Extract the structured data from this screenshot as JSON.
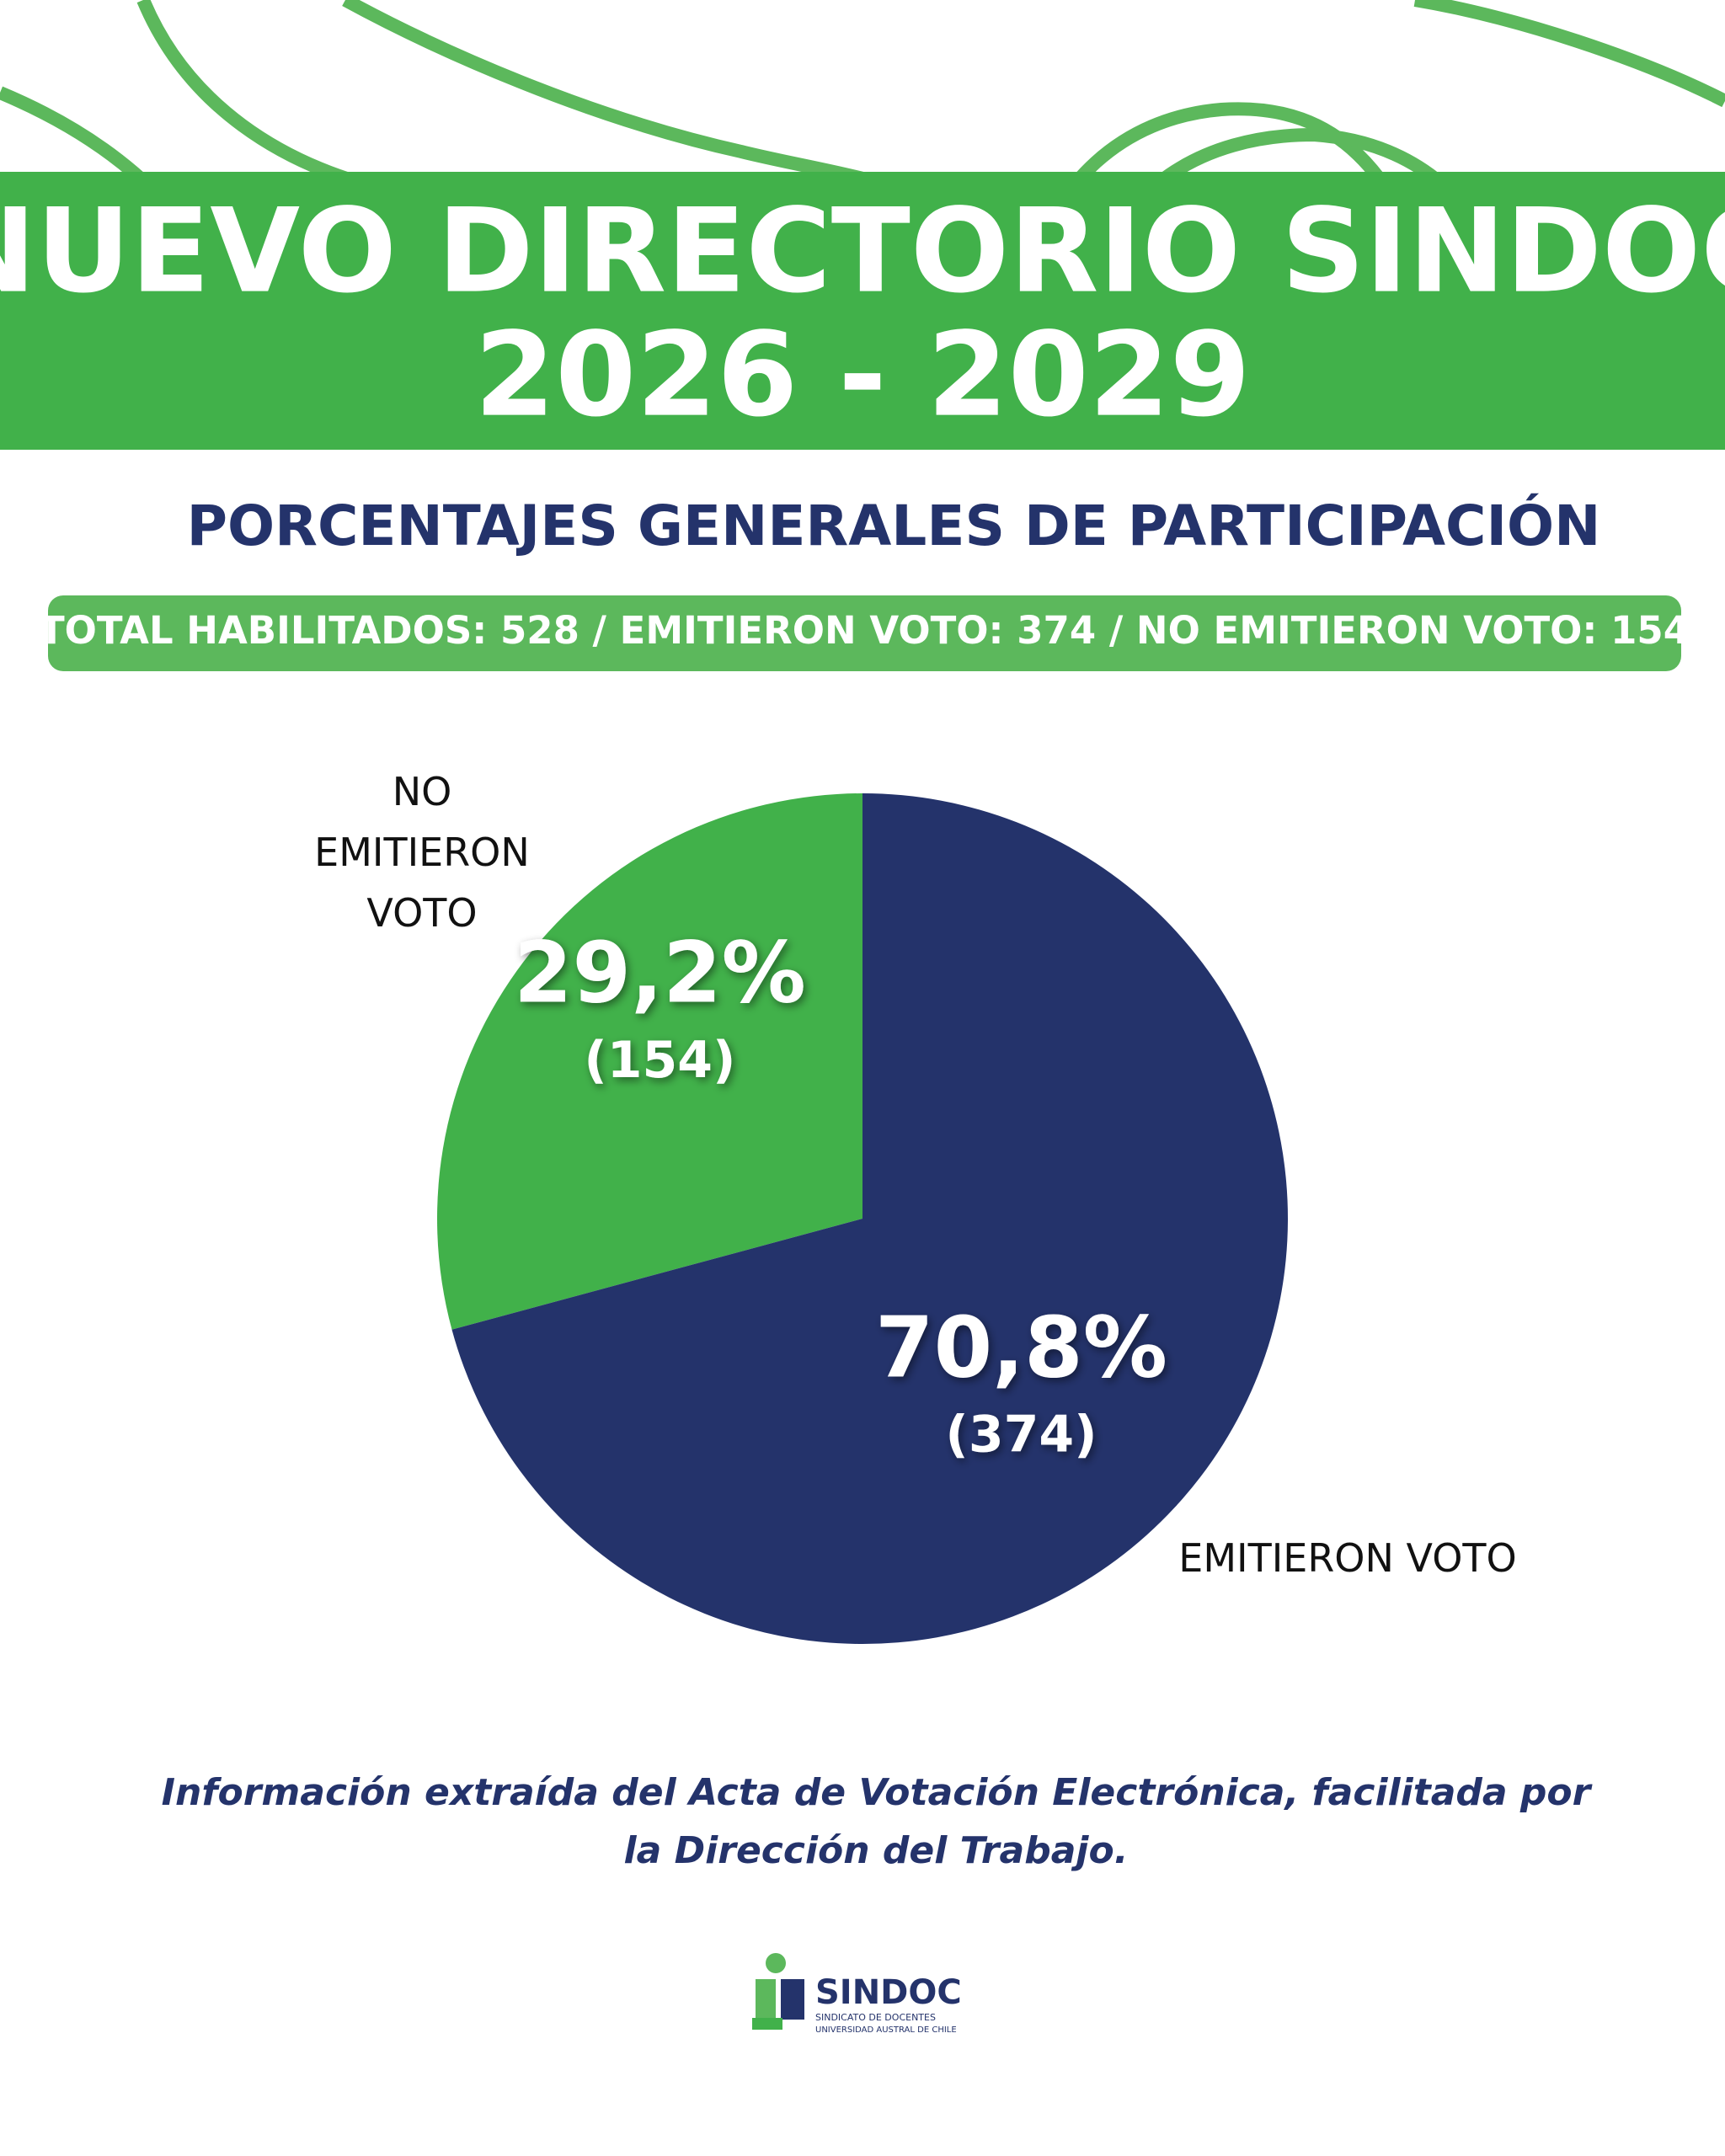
{
  "header": {
    "title_lines": [
      "NUEVO DIRECTORIO SINDOC",
      "2026 - 2029"
    ]
  },
  "chart_data": {
    "type": "pie",
    "title": "PORCENTAJES GENERALES DE PARTICIPACIÓN",
    "subtitle": "TOTAL HABILITADOS: 528 / EMITIERON VOTO: 374 / NO EMITIERON VOTO: 154",
    "categories": [
      "NO EMITIERON VOTO",
      "EMITIERON VOTO"
    ],
    "values": [
      29.2,
      70.8
    ],
    "value_labels": [
      "29,2%",
      "70,8%"
    ],
    "counts": [
      154,
      374
    ],
    "count_labels": [
      "(154)",
      "(374)"
    ],
    "colors": [
      "#41b14a",
      "#24336b"
    ]
  },
  "footnote": [
    "Información extraída del Acta de Votación Electrónica, facilitada por",
    "la Dirección del Trabajo."
  ],
  "logo": {
    "name": "SINDOC",
    "line1": "SINDICATO DE DOCENTES",
    "line2": "UNIVERSIDAD AUSTRAL DE CHILE"
  }
}
